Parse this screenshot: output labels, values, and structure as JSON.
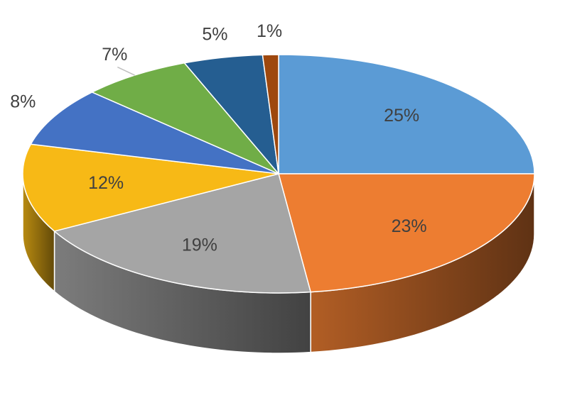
{
  "chart_data": {
    "type": "pie",
    "values": [
      25,
      23,
      19,
      12,
      8,
      7,
      5,
      1
    ],
    "value_labels": [
      "25%",
      "23%",
      "19%",
      "12%",
      "8%",
      "7%",
      "5%",
      "1%"
    ],
    "colors": [
      "#5b9bd5",
      "#ed7d31",
      "#a5a5a5",
      "#f7b916",
      "#4472c4",
      "#70ad47",
      "#255e91",
      "#9e480e"
    ]
  }
}
